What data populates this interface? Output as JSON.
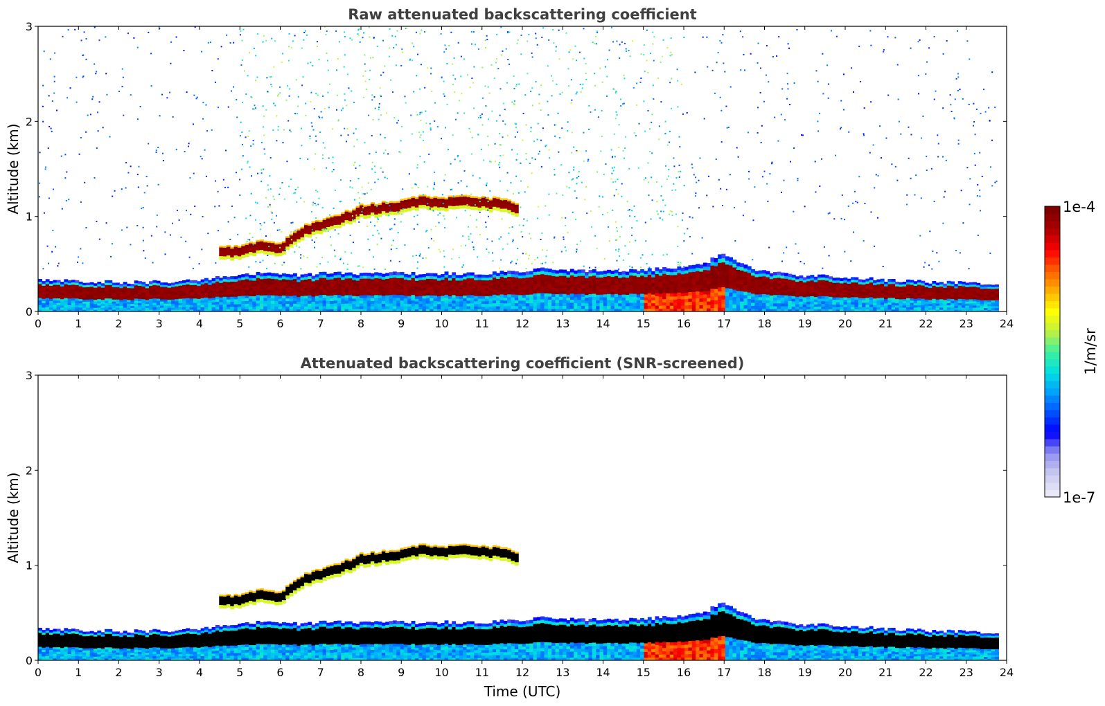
{
  "colors": {
    "colormap": [
      "#e8e8f8",
      "#c8c8f0",
      "#9090f0",
      "#0000ff",
      "#0050ff",
      "#00a0ff",
      "#00e0e0",
      "#40f0a0",
      "#c0f040",
      "#ffff00",
      "#ffb000",
      "#ff6000",
      "#ff0000",
      "#b00000",
      "#800000"
    ],
    "cloud_core_screened": "#000000"
  },
  "chart_data": [
    {
      "type": "heatmap",
      "title": "Raw attenuated backscattering coefficient",
      "xlabel": "",
      "ylabel": "Altitude (km)",
      "xlim": [
        0,
        24
      ],
      "ylim": [
        0,
        3
      ],
      "x_ticks": [
        "0",
        "1",
        "2",
        "3",
        "4",
        "5",
        "6",
        "7",
        "8",
        "9",
        "10",
        "11",
        "12",
        "13",
        "14",
        "15",
        "16",
        "17",
        "18",
        "19",
        "20",
        "21",
        "22",
        "23",
        "24"
      ],
      "y_ticks": [
        "0",
        "1",
        "2",
        "3"
      ],
      "features": {
        "boundary_layer_top_km": {
          "x": [
            0,
            1,
            2,
            3,
            4,
            4.6,
            5,
            6,
            6.5,
            7,
            8,
            9,
            10,
            11,
            12,
            12.5,
            13,
            14,
            15,
            16,
            16.5,
            17,
            17.5,
            18,
            19,
            20,
            21,
            22,
            23,
            23.8
          ],
          "y": [
            0.33,
            0.32,
            0.31,
            0.31,
            0.33,
            0.36,
            0.4,
            0.4,
            0.38,
            0.4,
            0.4,
            0.4,
            0.4,
            0.4,
            0.42,
            0.45,
            0.44,
            0.42,
            0.43,
            0.48,
            0.5,
            0.62,
            0.48,
            0.42,
            0.38,
            0.36,
            0.33,
            0.31,
            0.3,
            0.3
          ]
        },
        "elevated_cloud_top_km": {
          "x": [
            4.5,
            5,
            5.5,
            6,
            6.6,
            7,
            7.5,
            8,
            8.5,
            9,
            9.5,
            10,
            10.5,
            11,
            11.5,
            11.9
          ],
          "y": [
            0.68,
            0.7,
            0.75,
            0.72,
            0.92,
            0.97,
            1.03,
            1.12,
            1.15,
            1.18,
            1.22,
            1.2,
            1.23,
            1.21,
            1.19,
            1.15
          ]
        },
        "aerosol_noise_region_x": [
          5,
          16
        ]
      }
    },
    {
      "type": "heatmap",
      "title": "Attenuated backscattering coefficient (SNR-screened)",
      "xlabel": "Time (UTC)",
      "ylabel": "Altitude (km)",
      "xlim": [
        0,
        24
      ],
      "ylim": [
        0,
        3
      ],
      "x_ticks": [
        "0",
        "1",
        "2",
        "3",
        "4",
        "5",
        "6",
        "7",
        "8",
        "9",
        "10",
        "11",
        "12",
        "13",
        "14",
        "15",
        "16",
        "17",
        "18",
        "19",
        "20",
        "21",
        "22",
        "23",
        "24"
      ],
      "y_ticks": [
        "0",
        "1",
        "2",
        "3"
      ]
    }
  ],
  "colorbar": {
    "label": "1/m/sr",
    "max_label": "1e-4",
    "min_label": "1e-7",
    "range": [
      1e-07,
      0.0001
    ],
    "scale": "log"
  }
}
